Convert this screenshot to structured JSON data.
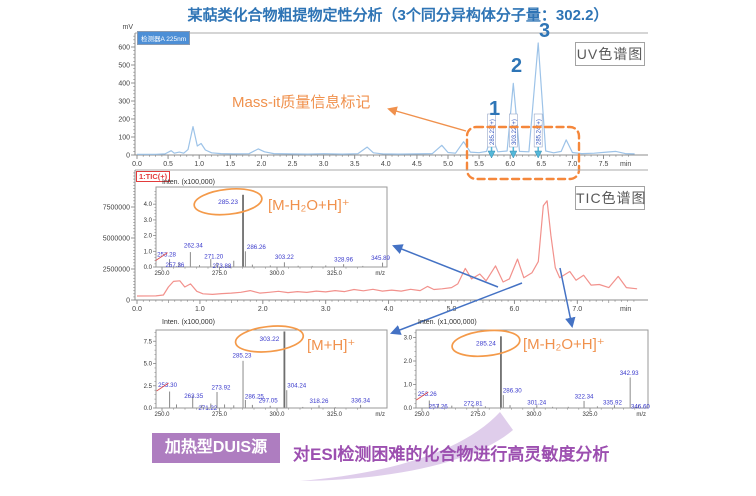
{
  "title": {
    "text": "某萜类化合物粗提物定性分析（3个同分异构体分子量：302.2）"
  },
  "annotations": {
    "mass_it": "Mass-it质量信息标记",
    "uv_panel_label": "UV色谱图",
    "tic_panel_label": "TIC色谱图",
    "tic_trace_label": "1:TIC(+)",
    "duis_badge": "加热型DUIS源",
    "duis_caption": "对ESI检测困难的化合物进行高灵敏度分析",
    "peak_numbers": [
      "1",
      "2",
      "3"
    ]
  },
  "colors": {
    "title_blue": "#2E74B5",
    "uv_trace": "#9DC3E8",
    "tic_trace": "#F2918C",
    "annotation_orange": "#F0914D",
    "dashed_box_orange": "#F5873B",
    "arrow_blue": "#4472C4",
    "marker_teal": "#55B8D8",
    "purple": "#9C4FB0",
    "badge_purple": "#AE7DC0",
    "swoosh_purple": "#DFCDEB",
    "stick_gray": "#8A8A8A",
    "peak_label_blue": "#3A3ACC",
    "axis_gray": "#8C8C8C"
  },
  "chart_data": [
    {
      "id": "uv",
      "type": "line",
      "name": "UV chromatogram",
      "detector": "检测器A 225nm",
      "xlabel": "min",
      "ylabel": "mV",
      "xlim": [
        0,
        8.0
      ],
      "ylim": [
        0,
        660
      ],
      "xtick_vals": [
        0,
        0.5,
        1,
        1.5,
        2,
        2.5,
        3,
        3.5,
        4,
        4.5,
        5,
        5.5,
        6,
        6.5,
        7,
        7.5
      ],
      "xtick_labels": [
        "0.0",
        "0.5",
        "1.0",
        "1.5",
        "2.0",
        "2.5",
        "3.0",
        "3.5",
        "4.0",
        "4.5",
        "5.0",
        "5.5",
        "6.0",
        "6.5",
        "7.0",
        "7.5"
      ],
      "ytick_vals": [
        0,
        100,
        200,
        300,
        400,
        500,
        600
      ],
      "ytick_labels": [
        "0",
        "100",
        "200",
        "300",
        "400",
        "500",
        "600"
      ],
      "points": [
        [
          0,
          4
        ],
        [
          0.3,
          4
        ],
        [
          0.45,
          6
        ],
        [
          0.55,
          24
        ],
        [
          0.6,
          10
        ],
        [
          0.68,
          16
        ],
        [
          0.75,
          10
        ],
        [
          0.82,
          30
        ],
        [
          0.9,
          158
        ],
        [
          0.97,
          50
        ],
        [
          1.03,
          64
        ],
        [
          1.1,
          28
        ],
        [
          1.2,
          12
        ],
        [
          1.35,
          8
        ],
        [
          1.55,
          6
        ],
        [
          1.8,
          7
        ],
        [
          1.95,
          34
        ],
        [
          2.05,
          18
        ],
        [
          2.2,
          8
        ],
        [
          2.45,
          6
        ],
        [
          2.75,
          5
        ],
        [
          3.0,
          7
        ],
        [
          3.3,
          5
        ],
        [
          3.55,
          7
        ],
        [
          3.7,
          44
        ],
        [
          3.8,
          12
        ],
        [
          3.95,
          6
        ],
        [
          4.2,
          5
        ],
        [
          4.5,
          6
        ],
        [
          4.75,
          8
        ],
        [
          4.9,
          54
        ],
        [
          5.0,
          14
        ],
        [
          5.12,
          10
        ],
        [
          5.25,
          74
        ],
        [
          5.36,
          16
        ],
        [
          5.5,
          13
        ],
        [
          5.62,
          20
        ],
        [
          5.7,
          113
        ],
        [
          5.8,
          18
        ],
        [
          5.95,
          22
        ],
        [
          6.05,
          398
        ],
        [
          6.15,
          20
        ],
        [
          6.3,
          18
        ],
        [
          6.45,
          622
        ],
        [
          6.57,
          22
        ],
        [
          6.7,
          12
        ],
        [
          6.82,
          20
        ],
        [
          6.9,
          84
        ],
        [
          7.0,
          14
        ],
        [
          7.15,
          8
        ],
        [
          7.35,
          10
        ],
        [
          7.55,
          16
        ],
        [
          7.7,
          20
        ],
        [
          7.85,
          8
        ],
        [
          8.0,
          6
        ]
      ],
      "peak_markers": [
        {
          "no": "1",
          "t": 5.7,
          "mz": "285.23(+)"
        },
        {
          "no": "2",
          "t": 6.05,
          "mz": "303.22(+)"
        },
        {
          "no": "3",
          "t": 6.45,
          "mz": "285.24(+)"
        }
      ]
    },
    {
      "id": "tic",
      "type": "line",
      "name": "TIC chromatogram",
      "trace_label": "1:TIC(+)",
      "xlabel": "min",
      "ylabel": "",
      "xlim": [
        0,
        8.0
      ],
      "ylim": [
        0,
        10000000
      ],
      "xtick_vals": [
        0,
        1,
        2,
        3,
        4,
        5,
        6,
        7
      ],
      "xtick_labels": [
        "0.0",
        "1.0",
        "2.0",
        "3.0",
        "4.0",
        "5.0",
        "6.0",
        "7.0"
      ],
      "ytick_vals": [
        0,
        2500000,
        5000000,
        7500000
      ],
      "ytick_labels": [
        "0",
        "2500000",
        "5000000",
        "7500000"
      ],
      "points": [
        [
          0,
          320000
        ],
        [
          0.3,
          330000
        ],
        [
          0.42,
          400000
        ],
        [
          0.5,
          1050000
        ],
        [
          0.58,
          1500000
        ],
        [
          0.68,
          1550000
        ],
        [
          0.76,
          1050000
        ],
        [
          0.85,
          1300000
        ],
        [
          0.95,
          700000
        ],
        [
          1.05,
          500000
        ],
        [
          1.2,
          450000
        ],
        [
          1.35,
          520000
        ],
        [
          1.5,
          560000
        ],
        [
          1.65,
          620000
        ],
        [
          1.8,
          760000
        ],
        [
          1.95,
          560000
        ],
        [
          2.1,
          620000
        ],
        [
          2.25,
          700000
        ],
        [
          2.4,
          600000
        ],
        [
          2.55,
          680000
        ],
        [
          2.7,
          610000
        ],
        [
          2.85,
          720000
        ],
        [
          3.0,
          650000
        ],
        [
          3.15,
          760000
        ],
        [
          3.3,
          680000
        ],
        [
          3.45,
          850000
        ],
        [
          3.6,
          740000
        ],
        [
          3.75,
          860000
        ],
        [
          3.9,
          720000
        ],
        [
          4.05,
          800000
        ],
        [
          4.2,
          720000
        ],
        [
          4.35,
          860000
        ],
        [
          4.5,
          760000
        ],
        [
          4.62,
          1100000
        ],
        [
          4.72,
          850000
        ],
        [
          4.85,
          900000
        ],
        [
          5.0,
          1000000
        ],
        [
          5.1,
          1300000
        ],
        [
          5.22,
          2550000
        ],
        [
          5.32,
          1700000
        ],
        [
          5.45,
          2100000
        ],
        [
          5.55,
          1550000
        ],
        [
          5.7,
          2750000
        ],
        [
          5.82,
          1450000
        ],
        [
          5.92,
          1700000
        ],
        [
          6.05,
          3300000
        ],
        [
          6.15,
          1800000
        ],
        [
          6.28,
          2200000
        ],
        [
          6.38,
          3100000
        ],
        [
          6.46,
          7600000
        ],
        [
          6.52,
          8000000
        ],
        [
          6.58,
          5200000
        ],
        [
          6.65,
          2600000
        ],
        [
          6.72,
          1800000
        ],
        [
          6.88,
          2300000
        ],
        [
          6.98,
          1600000
        ],
        [
          7.1,
          2000000
        ],
        [
          7.22,
          1200000
        ],
        [
          7.35,
          1250000
        ],
        [
          7.5,
          1000000
        ],
        [
          7.65,
          1900000
        ],
        [
          7.78,
          1000000
        ],
        [
          7.95,
          900000
        ]
      ]
    },
    {
      "id": "msA",
      "type": "stick",
      "name": "mass spectrum peak 1",
      "inten_label": "Inten. (x100,000)",
      "xunit": "m/z",
      "adduct": "[M-H₂O+H]⁺",
      "xtick_vals": [
        250,
        275,
        300,
        325
      ],
      "xtick_labels": [
        "250.0",
        "275.0",
        "300.0",
        "325.0"
      ],
      "ytick_vals": [
        0,
        1,
        2,
        3,
        4
      ],
      "ytick_labels": [
        "0.0",
        "1.0",
        "2.0",
        "3.0",
        "4.0"
      ],
      "peaks": [
        {
          "mz": 253.28,
          "i": 0.5,
          "label": "253.28",
          "red": true,
          "dx": -3
        },
        {
          "mz": 257.36,
          "i": 0.3,
          "label": "257.36",
          "dx": -4,
          "dy": 7
        },
        {
          "mz": 262.34,
          "i": 0.95,
          "label": "262.34",
          "dx": 3,
          "dy": -2
        },
        {
          "mz": 266.3,
          "i": 0.12
        },
        {
          "mz": 271.2,
          "i": 0.5,
          "label": "271.20",
          "dx": 3,
          "dy": 2
        },
        {
          "mz": 273.88,
          "i": 0.28,
          "label": "273.88",
          "dx": 5,
          "dy": 8
        },
        {
          "mz": 279.2,
          "i": 0.12
        },
        {
          "mz": 281.2,
          "i": 0.4
        },
        {
          "mz": 285.23,
          "i": 4.6,
          "label": "285.23",
          "main": true
        },
        {
          "mz": 286.26,
          "i": 1.0,
          "label": "286.26",
          "dx": 11
        },
        {
          "mz": 289.3,
          "i": 0.15
        },
        {
          "mz": 297.1,
          "i": 0.1
        },
        {
          "mz": 303.22,
          "i": 0.3,
          "label": "303.22",
          "dy": -1
        },
        {
          "mz": 309.2,
          "i": 0.08
        },
        {
          "mz": 315.3,
          "i": 0.07
        },
        {
          "mz": 321.2,
          "i": 0.1
        },
        {
          "mz": 328.96,
          "i": 0.18,
          "label": "328.96"
        },
        {
          "mz": 337.3,
          "i": 0.07
        },
        {
          "mz": 345.89,
          "i": 0.28,
          "label": "345.89",
          "dx": -2
        }
      ]
    },
    {
      "id": "msB",
      "type": "stick",
      "name": "mass spectrum peak 2",
      "inten_label": "Inten. (x100,000)",
      "xunit": "m/z",
      "adduct": "[M+H]⁺",
      "xtick_vals": [
        250,
        275,
        300,
        325
      ],
      "xtick_labels": [
        "250.0",
        "275.0",
        "300.0",
        "325.0"
      ],
      "ytick_vals": [
        0,
        2.5,
        5,
        7.5
      ],
      "ytick_labels": [
        "0.0",
        "2.5",
        "5.0",
        "7.5"
      ],
      "peaks": [
        {
          "mz": 253.3,
          "i": 1.85,
          "label": "253.30",
          "red": true,
          "dx": -2,
          "dy": -2
        },
        {
          "mz": 256.3,
          "i": 0.4
        },
        {
          "mz": 263.35,
          "i": 1.4,
          "label": "263.35",
          "dx": 1,
          "dy": 5
        },
        {
          "mz": 267.3,
          "i": 0.35
        },
        {
          "mz": 271.22,
          "i": 0.5,
          "label": "271.22",
          "dx": -3,
          "dy": 9
        },
        {
          "mz": 273.92,
          "i": 1.8,
          "label": "273.92",
          "dx": 4
        },
        {
          "mz": 277.2,
          "i": 0.4
        },
        {
          "mz": 281.2,
          "i": 0.3
        },
        {
          "mz": 285.23,
          "i": 5.3,
          "label": "285.23",
          "dx": -1,
          "dy": -1
        },
        {
          "mz": 286.25,
          "i": 0.9,
          "label": "286.25",
          "dx": 9,
          "dy": 1
        },
        {
          "mz": 289.3,
          "i": 0.35
        },
        {
          "mz": 297.05,
          "i": 0.25,
          "label": "297.05",
          "dx": -2,
          "dy": -1
        },
        {
          "mz": 303.22,
          "i": 8.6,
          "label": "303.22",
          "main": true
        },
        {
          "mz": 304.24,
          "i": 2.0,
          "label": "304.24",
          "dx": 10
        },
        {
          "mz": 311.2,
          "i": 0.12
        },
        {
          "mz": 318.26,
          "i": 0.3,
          "label": "318.26"
        },
        {
          "mz": 325.3,
          "i": 0.1
        },
        {
          "mz": 336.34,
          "i": 0.35,
          "label": "336.34"
        }
      ]
    },
    {
      "id": "msC",
      "type": "stick",
      "name": "mass spectrum peak 3",
      "inten_label": "Inten. (x1,000,000)",
      "xunit": "m/z",
      "adduct": "[M-H₂O+H]⁺",
      "xtick_vals": [
        250,
        275,
        300,
        325
      ],
      "xtick_labels": [
        "250.0",
        "275.0",
        "300.0",
        "325.0"
      ],
      "ytick_vals": [
        0,
        1,
        2,
        3
      ],
      "ytick_labels": [
        "0.0",
        "1.0",
        "2.0",
        "3.0"
      ],
      "peaks": [
        {
          "mz": 253.26,
          "i": 0.32,
          "label": "253.26",
          "red": true,
          "dx": -2,
          "dy": -2
        },
        {
          "mz": 257.26,
          "i": 0.18,
          "label": "257.26",
          "dy": 7
        },
        {
          "mz": 263.3,
          "i": 0.1
        },
        {
          "mz": 272.81,
          "i": 0.12,
          "label": "272.81",
          "dy": 3
        },
        {
          "mz": 278.3,
          "i": 0.07
        },
        {
          "mz": 285.24,
          "i": 3.05,
          "label": "285.24",
          "main": true
        },
        {
          "mz": 286.3,
          "i": 0.55,
          "label": "286.30",
          "dx": 9
        },
        {
          "mz": 289.3,
          "i": 0.12
        },
        {
          "mz": 301.24,
          "i": 0.12,
          "label": "301.24",
          "dy": 2
        },
        {
          "mz": 308.3,
          "i": 0.05
        },
        {
          "mz": 315.3,
          "i": 0.05
        },
        {
          "mz": 322.34,
          "i": 0.3,
          "label": "322.34"
        },
        {
          "mz": 328.3,
          "i": 0.07
        },
        {
          "mz": 335.92,
          "i": 0.12,
          "label": "335.92",
          "dx": -2,
          "dy": 2
        },
        {
          "mz": 342.93,
          "i": 1.3,
          "label": "342.93",
          "dx": -1
        },
        {
          "mz": 346.6,
          "i": 0.12,
          "label": "346.60",
          "dx": 2,
          "dy": 6
        }
      ]
    }
  ]
}
